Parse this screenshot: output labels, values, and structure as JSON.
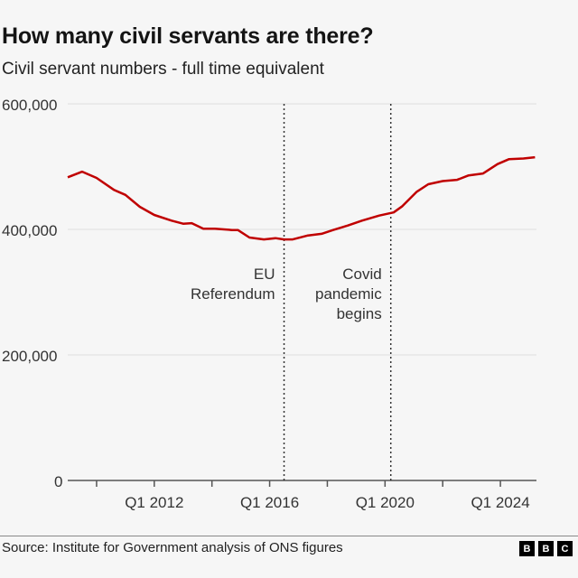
{
  "title": "How many civil servants are there?",
  "subtitle": "Civil servant numbers - full time equivalent",
  "source": "Source: Institute for Government analysis of ONS figures",
  "logo": [
    "B",
    "B",
    "C"
  ],
  "colors": {
    "line": "#c00000",
    "grid": "#e6e6e6",
    "axis": "#555555",
    "background": "#f6f6f6"
  },
  "chart_data": {
    "type": "line",
    "title": "How many civil servants are there?",
    "subtitle": "Civil servant numbers - full time equivalent",
    "ylim": [
      0,
      600000
    ],
    "yticks": [
      0,
      200000,
      400000,
      600000
    ],
    "ytick_labels": [
      "0",
      "200,000",
      "400,000",
      "600,000"
    ],
    "xlim": [
      2009,
      2025.25
    ],
    "xticks": [
      2010,
      2012,
      2014,
      2016,
      2018,
      2020,
      2022,
      2024
    ],
    "xtick_labels": [
      {
        "x": 2012,
        "label": "Q1 2012"
      },
      {
        "x": 2016,
        "label": "Q1 2016"
      },
      {
        "x": 2020,
        "label": "Q1 2020"
      },
      {
        "x": 2024,
        "label": "Q1 2024"
      }
    ],
    "grid": true,
    "series": [
      {
        "x": [
          2009.0,
          2009.5,
          2010.0,
          2010.6,
          2011.0,
          2011.5,
          2012.0,
          2012.6,
          2013.0,
          2013.3,
          2013.7,
          2014.1,
          2014.7,
          2014.9,
          2015.3,
          2015.8,
          2016.2,
          2016.5,
          2016.8,
          2017.3,
          2017.8,
          2018.2,
          2018.7,
          2019.2,
          2019.8,
          2020.3,
          2020.6,
          2021.1,
          2021.5,
          2022.0,
          2022.5,
          2022.9,
          2023.4,
          2023.9,
          2024.3,
          2024.8,
          2025.2
        ],
        "y": [
          483000,
          492000,
          482000,
          463000,
          455000,
          436000,
          423000,
          414000,
          409000,
          410000,
          401000,
          401000,
          399000,
          399000,
          387000,
          384000,
          386000,
          384000,
          384000,
          390000,
          393000,
          399000,
          406000,
          414000,
          422000,
          427000,
          437000,
          460000,
          472000,
          477000,
          479000,
          486000,
          489000,
          504000,
          512000,
          513000,
          515000
        ]
      }
    ],
    "annotations": [
      {
        "x": 2016.5,
        "lines": [
          "EU",
          "Referendum"
        ]
      },
      {
        "x": 2020.2,
        "lines": [
          "Covid",
          "pandemic",
          "begins"
        ]
      }
    ]
  }
}
